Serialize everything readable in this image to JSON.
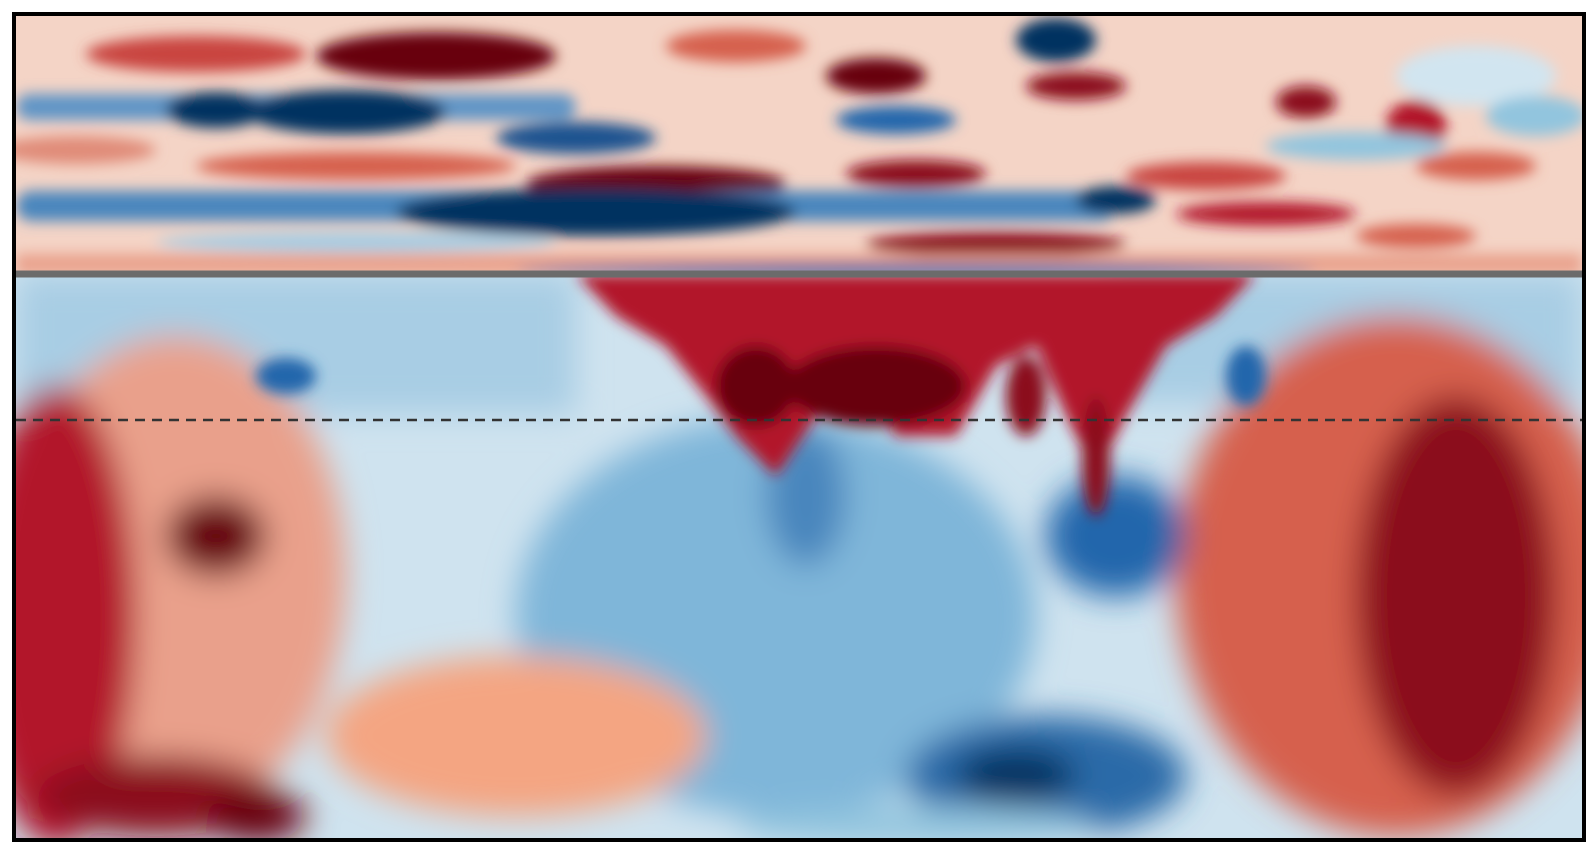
{
  "colors": {
    "deep_red": "#67000d",
    "red": "#b2182b",
    "light_red": "#f4a582",
    "pale": "#fbe8e0",
    "white": "#f7f7f7",
    "pale_blue": "#d1e5f0",
    "light_blue": "#92c5de",
    "blue": "#2166ac",
    "deep_blue": "#053061",
    "interface_line": "#6b6b6b",
    "dashed_line": "#333333",
    "frame": "#000000"
  },
  "colormap": "RdBu_r",
  "interface_line_style": "solid",
  "reference_line_style": "dashed"
}
